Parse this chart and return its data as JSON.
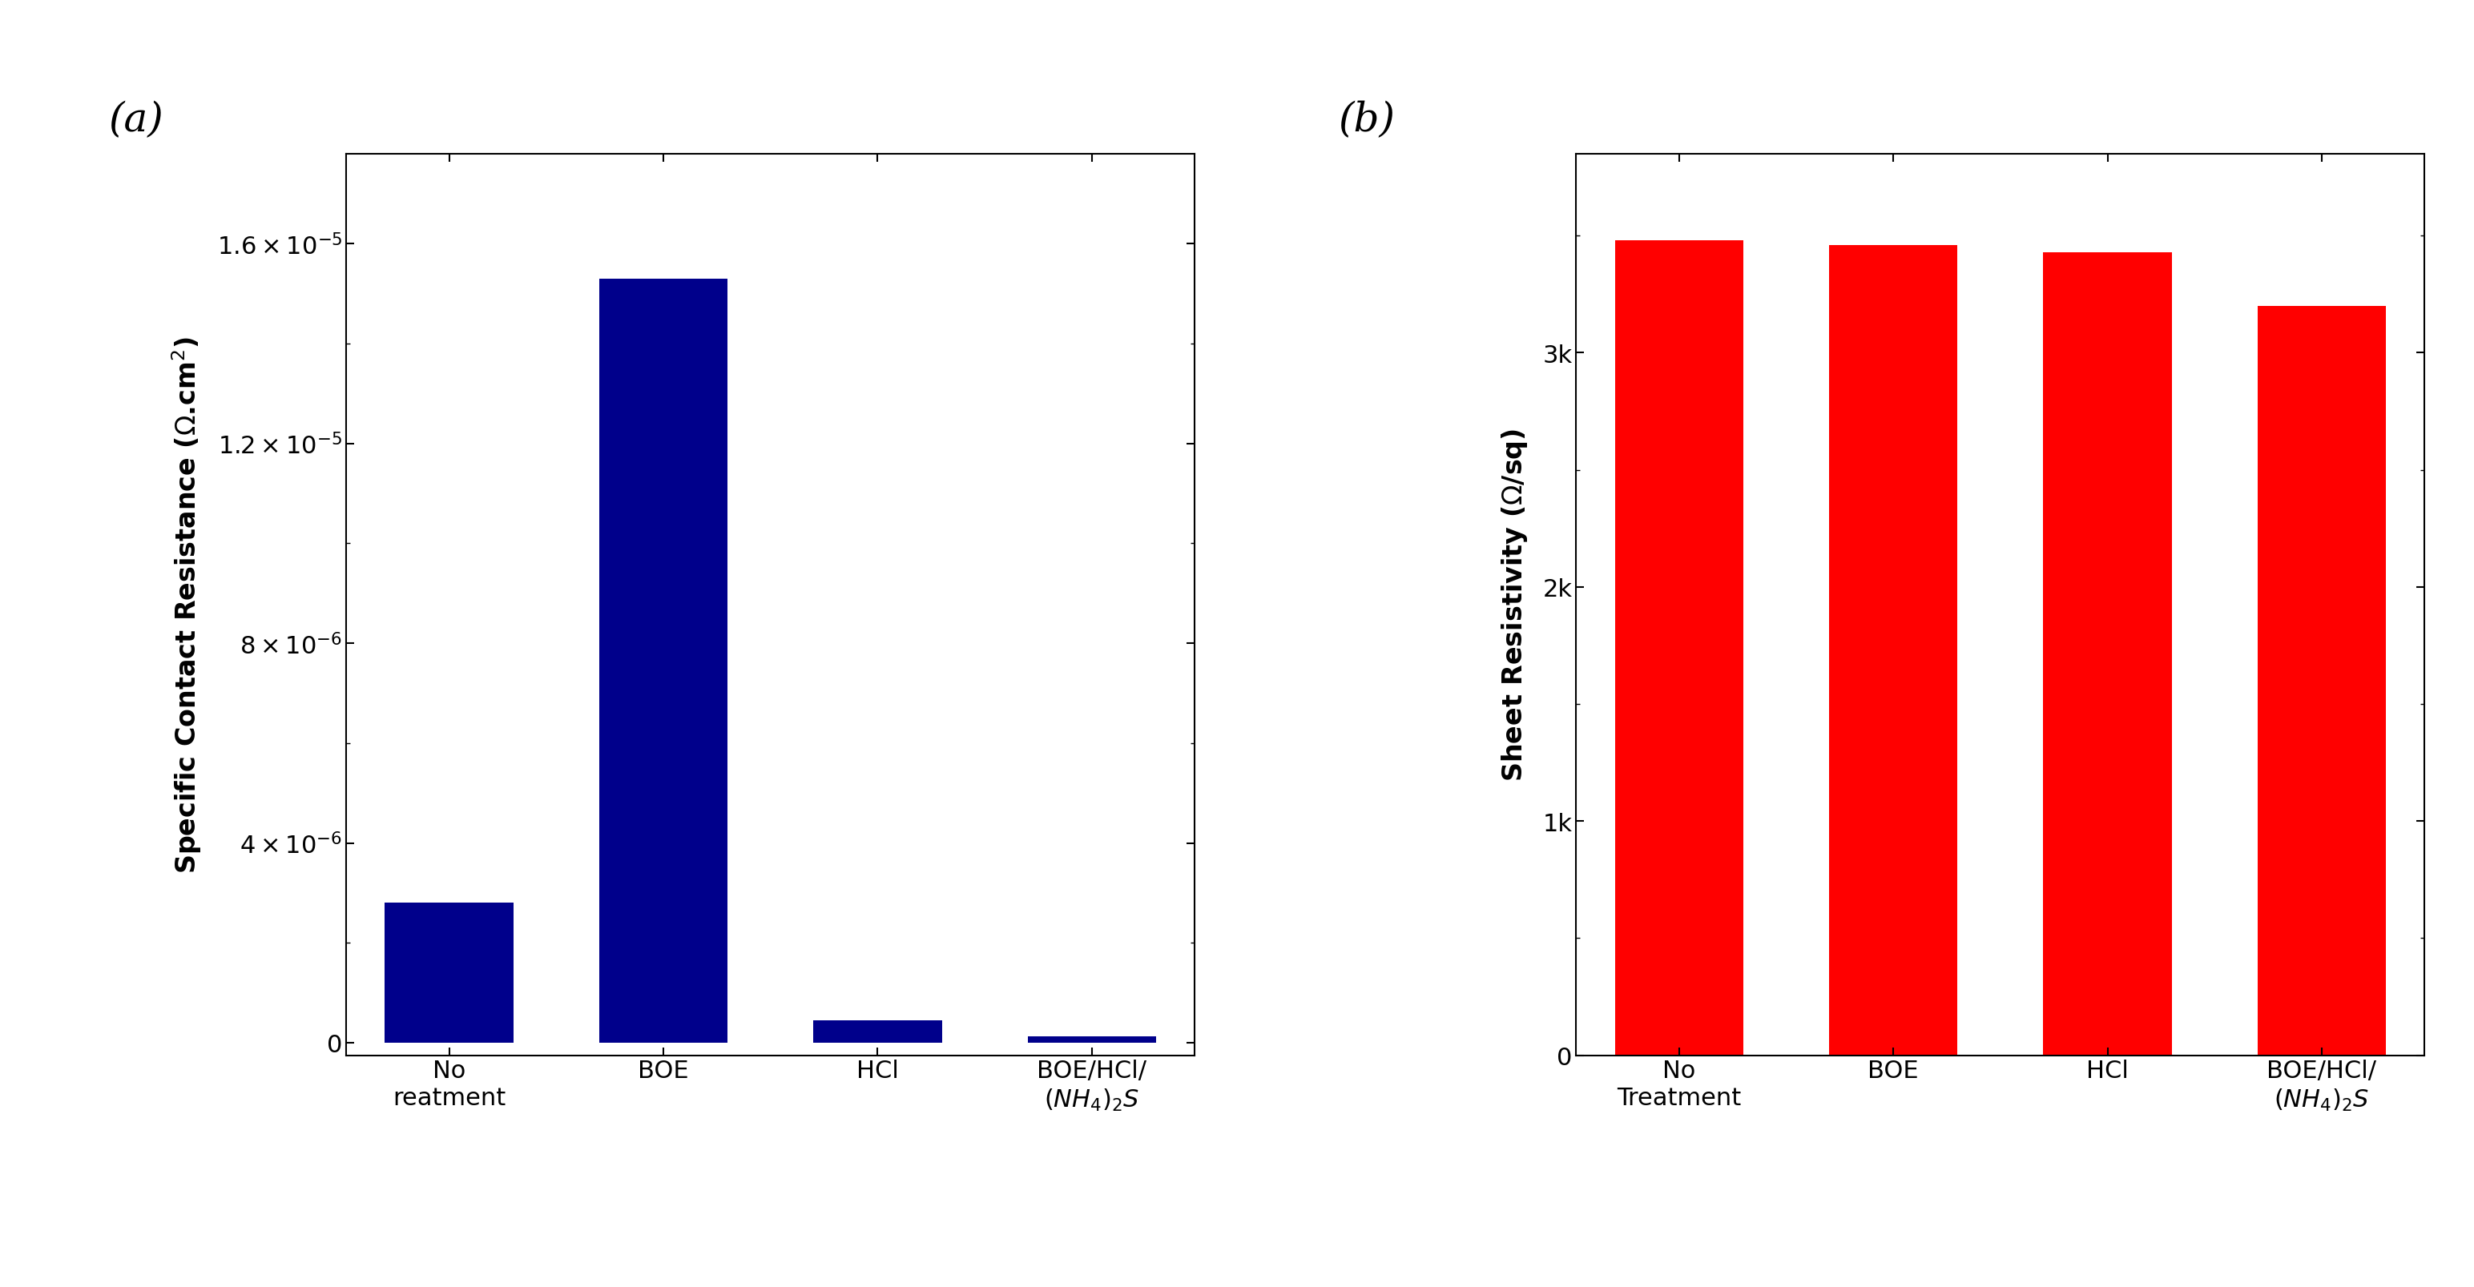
{
  "chart_a": {
    "categories": [
      "No\nreatment",
      "BOE",
      "HCl",
      "BOE/HCl/\n$(NH_4)_2S$"
    ],
    "values": [
      2.8e-06,
      1.53e-05,
      4.5e-07,
      1.2e-07
    ],
    "bar_color": "#00008B",
    "ylabel": "Specific Contact Resistance ($\\Omega$.cm$^2$)",
    "yticks": [
      0,
      4e-06,
      8e-06,
      1.2e-05,
      1.6e-05
    ],
    "ytick_labels": [
      "0",
      "$4\\times10^{-6}$",
      "$8\\times10^{-6}$",
      "$1.2\\times10^{-5}$",
      "$1.6\\times10^{-5}$"
    ],
    "ylim": [
      -2.5e-07,
      1.78e-05
    ],
    "panel_label": "(a)"
  },
  "chart_b": {
    "categories": [
      "No\nTreatment",
      "BOE",
      "HCl",
      "BOE/HCl/\n$(NH_4)_2S$"
    ],
    "values": [
      3480,
      3460,
      3430,
      3200
    ],
    "bar_color": "#FF0000",
    "ylabel": "Sheet Resistivity ($\\Omega$/sq)",
    "yticks": [
      0,
      1000,
      2000,
      3000
    ],
    "ytick_labels": [
      "0",
      "1k",
      "2k",
      "3k"
    ],
    "ylim": [
      0,
      3850
    ],
    "panel_label": "(b)"
  },
  "background_color": "#FFFFFF",
  "tick_fontsize": 22,
  "label_fontsize": 24,
  "panel_label_fontsize": 36,
  "bar_width": 0.6
}
